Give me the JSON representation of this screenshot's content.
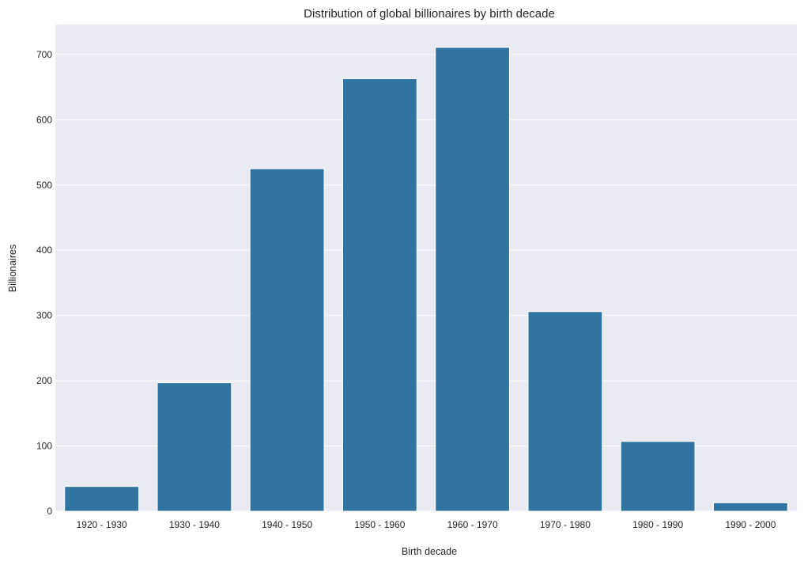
{
  "chart_data": {
    "type": "bar",
    "title": "Distribution of global billionaires by birth decade",
    "xlabel": "Birth decade",
    "ylabel": "Billionaires",
    "categories": [
      "1920 - 1930",
      "1930 - 1940",
      "1940 - 1950",
      "1950 - 1960",
      "1960 - 1970",
      "1970 - 1980",
      "1980 - 1990",
      "1990 - 2000"
    ],
    "values": [
      38,
      197,
      525,
      663,
      711,
      306,
      107,
      13
    ],
    "ylim": [
      0,
      746
    ],
    "yticks": [
      0,
      100,
      200,
      300,
      400,
      500,
      600,
      700
    ],
    "grid": true,
    "legend": "none",
    "colors": {
      "bar": "#3274a1",
      "plot_background": "#eaeaf2",
      "grid": "#ffffff",
      "text": "#262626"
    }
  }
}
